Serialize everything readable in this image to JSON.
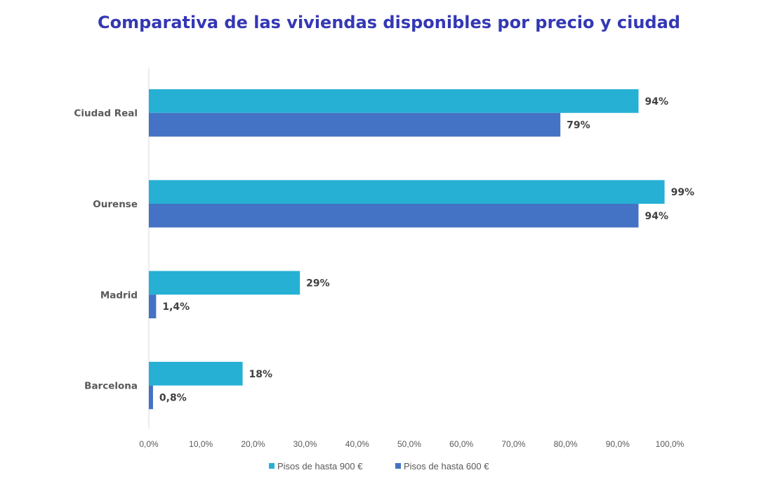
{
  "chart_data": {
    "type": "bar",
    "orientation": "horizontal",
    "title": "Comparativa de las viviendas disponibles por precio y ciudad",
    "xlabel": "",
    "ylabel": "",
    "categories": [
      "Ciudad Real",
      "Ourense",
      "Madrid",
      "Barcelona"
    ],
    "series": [
      {
        "name": "Pisos de hasta 900 €",
        "color": "#25b0d4",
        "values": [
          94,
          99,
          29,
          18
        ],
        "labels": [
          "94%",
          "99%",
          "29%",
          "18%"
        ]
      },
      {
        "name": "Pisos de hasta 600 €",
        "color": "#4472c4",
        "values": [
          79,
          94,
          1.4,
          0.8
        ],
        "labels": [
          "79%",
          "94%",
          "1,4%",
          "0,8%"
        ]
      }
    ],
    "xlim": [
      0,
      100
    ],
    "xticks": [
      "0,0%",
      "10,0%",
      "20,0%",
      "30,0%",
      "40,0%",
      "50,0%",
      "60,0%",
      "70,0%",
      "80,0%",
      "90,0%",
      "100,0%"
    ],
    "grid": false,
    "legend": "bottom"
  }
}
